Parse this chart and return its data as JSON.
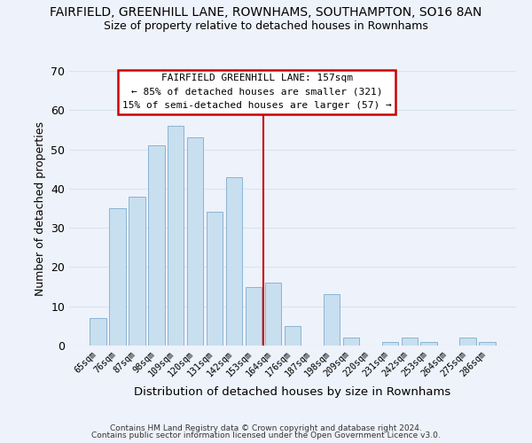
{
  "title": "FAIRFIELD, GREENHILL LANE, ROWNHAMS, SOUTHAMPTON, SO16 8AN",
  "subtitle": "Size of property relative to detached houses in Rownhams",
  "xlabel": "Distribution of detached houses by size in Rownhams",
  "ylabel": "Number of detached properties",
  "bin_labels": [
    "65sqm",
    "76sqm",
    "87sqm",
    "98sqm",
    "109sqm",
    "120sqm",
    "131sqm",
    "142sqm",
    "153sqm",
    "164sqm",
    "176sqm",
    "187sqm",
    "198sqm",
    "209sqm",
    "220sqm",
    "231sqm",
    "242sqm",
    "253sqm",
    "264sqm",
    "275sqm",
    "286sqm"
  ],
  "values": [
    7,
    35,
    38,
    51,
    56,
    53,
    34,
    43,
    15,
    16,
    5,
    0,
    13,
    2,
    0,
    1,
    2,
    1,
    0,
    2,
    1
  ],
  "bar_color": "#c8dff0",
  "bar_edgecolor": "#8ab4d4",
  "grid_color": "#d8e4f0",
  "vline_x": 8.5,
  "vline_color": "#cc0000",
  "annotation_title": "FAIRFIELD GREENHILL LANE: 157sqm",
  "annotation_line1": "← 85% of detached houses are smaller (321)",
  "annotation_line2": "15% of semi-detached houses are larger (57) →",
  "annotation_box_facecolor": "#ffffff",
  "annotation_box_edgecolor": "#cc0000",
  "ylim": [
    0,
    70
  ],
  "yticks": [
    0,
    10,
    20,
    30,
    40,
    50,
    60,
    70
  ],
  "footer1": "Contains HM Land Registry data © Crown copyright and database right 2024.",
  "footer2": "Contains public sector information licensed under the Open Government Licence v3.0.",
  "background_color": "#eef2fa"
}
